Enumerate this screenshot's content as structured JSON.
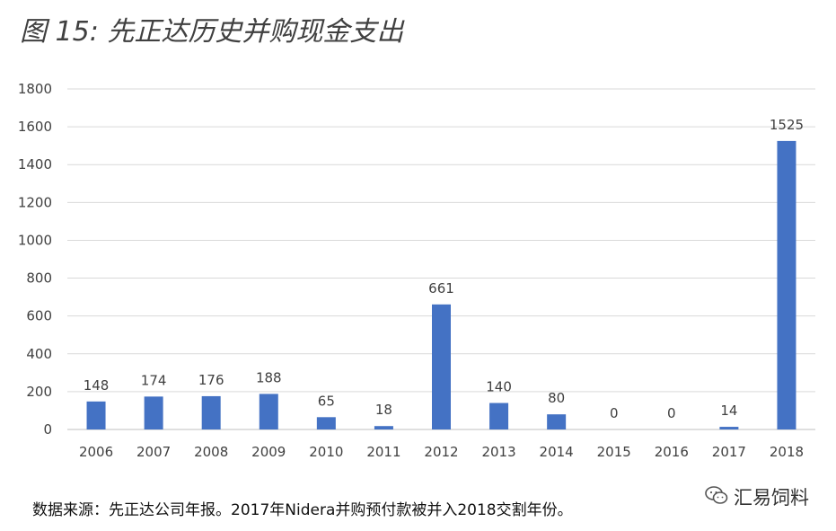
{
  "chart_data": {
    "type": "bar",
    "title": "图 15: 先正达历史并购现金支出",
    "categories": [
      "2006",
      "2007",
      "2008",
      "2009",
      "2010",
      "2011",
      "2012",
      "2013",
      "2014",
      "2015",
      "2016",
      "2017",
      "2018"
    ],
    "values": [
      148,
      174,
      176,
      188,
      65,
      18,
      661,
      140,
      80,
      0,
      0,
      14,
      1525
    ],
    "ylim": [
      0,
      1800
    ],
    "yticks": [
      0,
      200,
      400,
      600,
      800,
      1000,
      1200,
      1400,
      1600,
      1800
    ],
    "grid": true,
    "bar_color": "#4472C4",
    "data_labels": true
  },
  "footer": {
    "source": "数据来源：先正达公司年报。2017年Nidera并购预付款被并入2018交割年份。",
    "brand": "汇易饲料",
    "brand_icon": "wechat-icon"
  }
}
